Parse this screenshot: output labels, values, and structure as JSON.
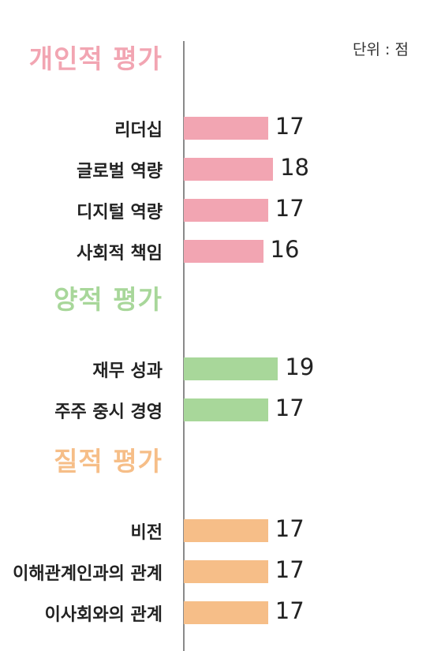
{
  "unit": "단위 : 점",
  "colors": {
    "individual": "#f2a5b2",
    "quantitative": "#a8d79a",
    "qualitative": "#f6be88"
  },
  "chart_data": {
    "type": "bar",
    "orientation": "horizontal",
    "unit": "단위 : 점",
    "xlim": [
      0,
      19.5
    ],
    "groups": [
      {
        "title": "개인적 평가",
        "color_key": "individual",
        "categories": [
          "리더십",
          "글로벌 역량",
          "디지털 역량",
          "사회적 책임"
        ],
        "values": [
          17,
          18,
          17,
          16
        ],
        "labels": [
          "17",
          "18",
          "17",
          "16"
        ]
      },
      {
        "title": "양적 평가",
        "color_key": "quantitative",
        "categories": [
          "재무 성과",
          "주주 중시 경영"
        ],
        "values": [
          19,
          17
        ],
        "labels": [
          "19",
          "17"
        ]
      },
      {
        "title": "질적 평가",
        "color_key": "qualitative",
        "categories": [
          "비전",
          "이해관계인과의 관계",
          "이사회와의 관계"
        ],
        "values": [
          17,
          17,
          17
        ],
        "labels": [
          "17",
          "17",
          "17"
        ]
      }
    ]
  }
}
